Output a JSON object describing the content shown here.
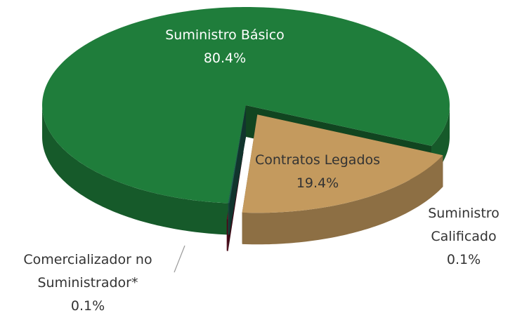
{
  "chart_data": {
    "type": "pie",
    "categories": [
      "Suministro Básico",
      "Contratos Legados",
      "Suministro Calificado",
      "Comercializador no Suministrador*"
    ],
    "values": [
      80.4,
      19.4,
      0.1,
      0.1
    ],
    "value_labels": [
      "80.4%",
      "19.4%",
      "0.1%",
      "0.1%"
    ],
    "colors": [
      "#1f7d3b",
      "#c49a5e",
      "#6a1126",
      "#1f5e52"
    ]
  }
}
